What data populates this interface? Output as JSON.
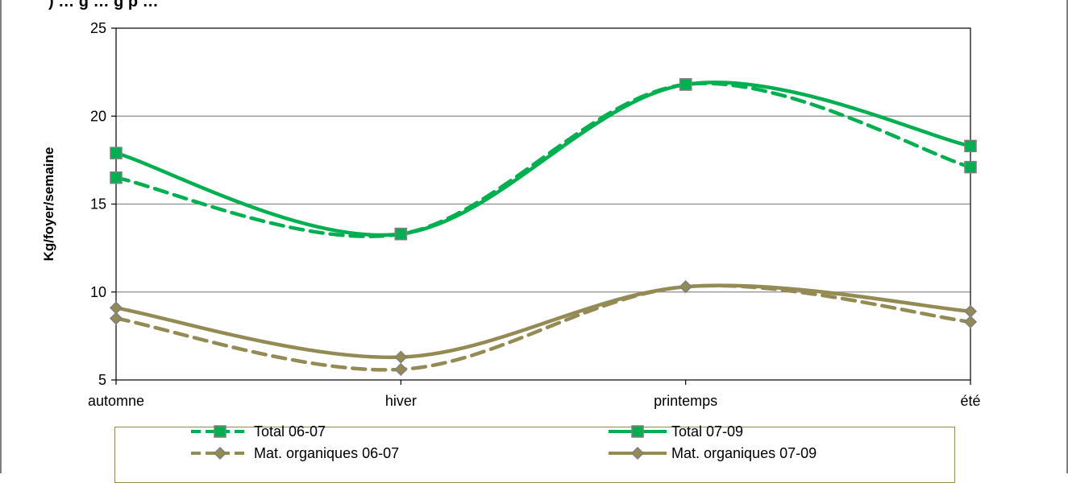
{
  "chart_data": {
    "type": "line",
    "title": "",
    "ylabel": "Kg/foyer/semaine",
    "xlabel": "",
    "categories": [
      "automne",
      "hiver",
      "printemps",
      "été"
    ],
    "ylim": [
      5,
      25
    ],
    "yticks": [
      5,
      10,
      15,
      20,
      25
    ],
    "grid": true,
    "legend": "bottom",
    "series": [
      {
        "name": "Total 06-07",
        "values": [
          16.5,
          13.3,
          21.8,
          17.1
        ],
        "color": "#00B050",
        "dash": true,
        "marker": "square"
      },
      {
        "name": "Total 07-09",
        "values": [
          17.9,
          13.3,
          21.8,
          18.3
        ],
        "color": "#00B050",
        "dash": false,
        "marker": "square"
      },
      {
        "name": "Mat. organiques 06-07",
        "values": [
          8.5,
          5.6,
          10.3,
          8.3
        ],
        "color": "#948A54",
        "dash": true,
        "marker": "diamond"
      },
      {
        "name": "Mat. organiques 07-09",
        "values": [
          9.1,
          6.3,
          10.3,
          8.9
        ],
        "color": "#948A54",
        "dash": false,
        "marker": "diamond"
      }
    ]
  },
  "page_title": ") … g … g p …"
}
